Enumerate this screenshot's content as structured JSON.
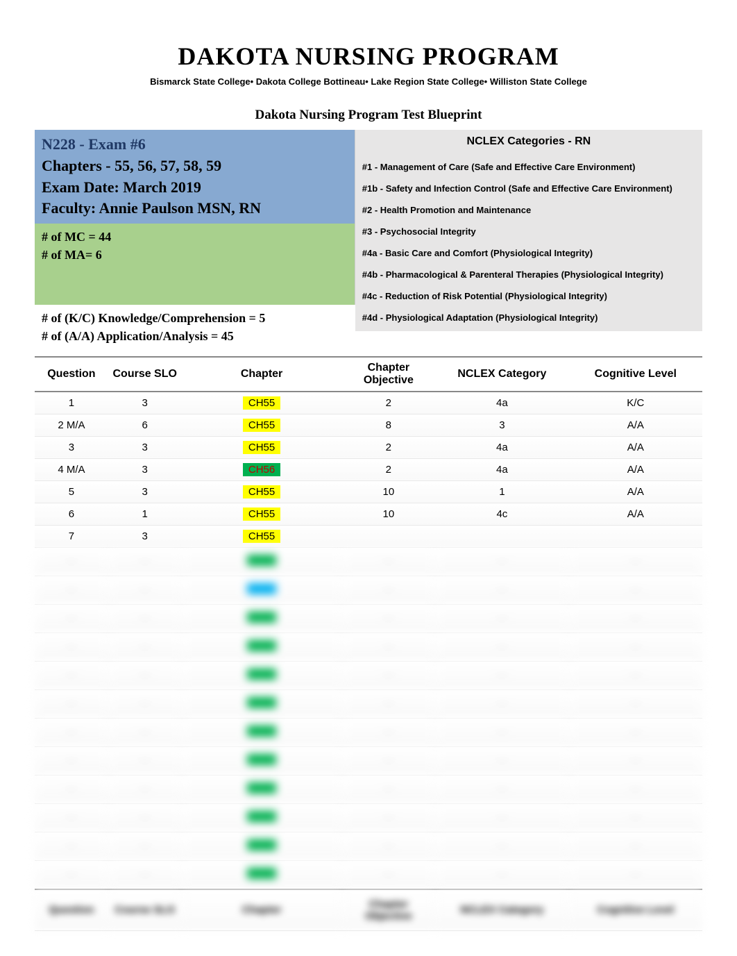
{
  "header": {
    "title": "DAKOTA NURSING PROGRAM",
    "colleges": "Bismarck State College• Dakota College Bottineau• Lake Region State College• Williston State College",
    "subtitle": "Dakota Nursing Program Test Blueprint"
  },
  "examInfo": {
    "code": "N228 - Exam #6",
    "chapters": "Chapters - 55, 56, 57, 58, 59",
    "date": "Exam Date: March 2019",
    "faculty": "Faculty: Annie Paulson MSN, RN",
    "mc": "# of MC = 44",
    "ma": "# of MA= 6",
    "kc": "# of (K/C) Knowledge/Comprehension = 5",
    "aa": "# of (A/A) Application/Analysis  = 45"
  },
  "nclex": {
    "title": "NCLEX Categories - RN",
    "items": [
      "#1 - Management of Care (Safe and Effective Care Environment)",
      "#1b - Safety and Infection Control (Safe and Effective Care Environment)",
      "#2 - Health Promotion and Maintenance",
      "#3 - Psychosocial Integrity",
      "#4a - Basic Care and Comfort (Physiological Integrity)",
      "#4b - Pharmacological & Parenteral Therapies (Physiological Integrity)",
      "#4c - Reduction of Risk Potential (Physiological Integrity)",
      "#4d - Physiological Adaptation (Physiological Integrity)"
    ]
  },
  "columns": [
    "Question",
    "Course SLO",
    "Chapter",
    "Chapter Objective",
    "NCLEX  Category",
    "Cognitive Level"
  ],
  "rows": [
    {
      "q": "1",
      "slo": "3",
      "chap": "CH55",
      "chapClass": "hl-yellow",
      "obj": "2",
      "nclex": "4a",
      "cog": "K/C"
    },
    {
      "q": "2 M/A",
      "slo": "6",
      "chap": "CH55",
      "chapClass": "hl-yellow",
      "obj": "8",
      "nclex": "3",
      "cog": "A/A"
    },
    {
      "q": "3",
      "slo": "3",
      "chap": "CH55",
      "chapClass": "hl-yellow",
      "obj": "2",
      "nclex": "4a",
      "cog": "A/A"
    },
    {
      "q": "4 M/A",
      "slo": "3",
      "chap": "CH56",
      "chapClass": "hl-green",
      "obj": "2",
      "nclex": "4a",
      "cog": "A/A"
    },
    {
      "q": "5",
      "slo": "3",
      "chap": "CH55",
      "chapClass": "hl-yellow",
      "obj": "10",
      "nclex": "1",
      "cog": "A/A"
    },
    {
      "q": "6",
      "slo": "1",
      "chap": "CH55",
      "chapClass": "hl-yellow",
      "obj": "10",
      "nclex": "4c",
      "cog": "A/A"
    },
    {
      "q": "7",
      "slo": "3",
      "chap": "CH55",
      "chapClass": "hl-yellow",
      "obj": "",
      "nclex": "",
      "cog": ""
    }
  ],
  "blurRows": [
    {
      "color": "#00b050"
    },
    {
      "color": "#00b0f0"
    },
    {
      "color": "#00b050"
    },
    {
      "color": "#00b050"
    },
    {
      "color": "#00b050"
    },
    {
      "color": "#00b050"
    },
    {
      "color": "#00b050"
    },
    {
      "color": "#00b050"
    },
    {
      "color": "#00b050"
    },
    {
      "color": "#00b050"
    },
    {
      "color": "#00b050"
    },
    {
      "color": "#00b050"
    }
  ],
  "colors": {
    "blueHeader": "#87a9d1",
    "greenHeader": "#a8d08d",
    "grayBox": "#e7e6e6",
    "examCode": "#1f3864",
    "yellowHL": "#ffff00",
    "greenHL": "#00b050",
    "blueHL": "#00b0f0",
    "redText": "#c00000"
  }
}
